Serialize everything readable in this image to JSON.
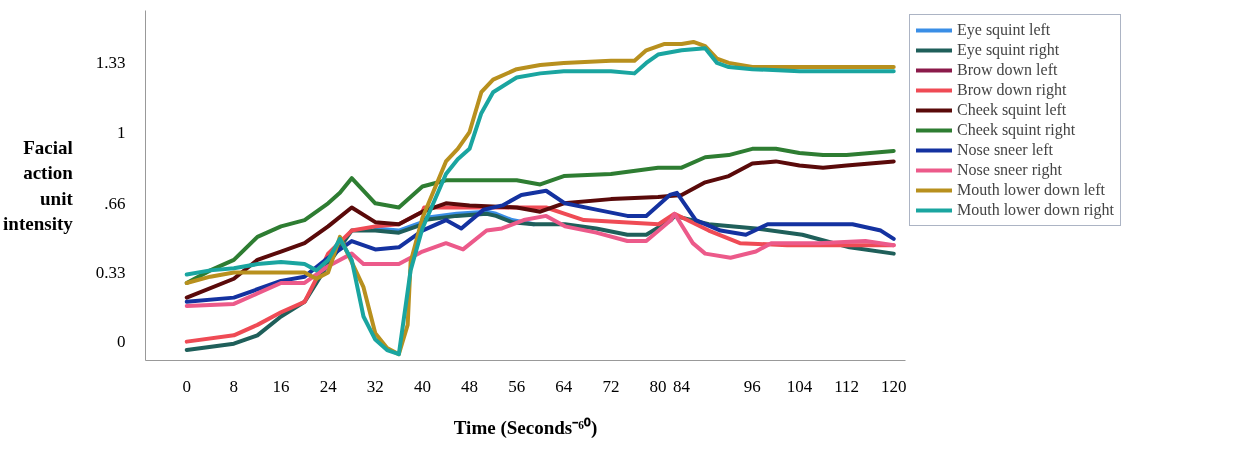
{
  "chart_data": {
    "type": "line",
    "xlabel": "Time (Seconds⁻⁶⁰)",
    "ylabel": "Facial action unit intensity",
    "xlim": [
      -7,
      122
    ],
    "ylim": [
      -0.09,
      1.58
    ],
    "xticks": [
      0,
      8,
      16,
      24,
      32,
      40,
      48,
      56,
      64,
      72,
      80,
      84,
      96,
      104,
      112,
      120
    ],
    "yticks": [
      0,
      0.33,
      {
        "value": 0.66,
        "label": ".66"
      },
      1,
      1.33
    ],
    "grid": false,
    "legend": "right",
    "marker": "none",
    "line_style": "solid",
    "series": [
      {
        "name": "Eye squint left",
        "color": "#3a8ee6",
        "x": [
          32,
          36,
          40,
          40.3,
          45.8,
          50.9,
          52.5,
          55.2,
          58.9
        ],
        "values": [
          0.54,
          0.53,
          0.57,
          0.59,
          0.61,
          0.62,
          0.61,
          0.58,
          0.56
        ]
      },
      {
        "name": "Eye squint right",
        "color": "#1f5f5a",
        "x": [
          0,
          8,
          12,
          16,
          20,
          24,
          28,
          32,
          36,
          40,
          40.3,
          45.8,
          50.9,
          52.5,
          55.2,
          58.9,
          64.2,
          69.5,
          74.8,
          78,
          82.2,
          82.8,
          88.6,
          96.6,
          104.5,
          112.5,
          120
        ],
        "values": [
          -0.04,
          -0.01,
          0.03,
          0.12,
          0.19,
          0.37,
          0.53,
          0.53,
          0.52,
          0.56,
          0.58,
          0.6,
          0.61,
          0.6,
          0.57,
          0.56,
          0.56,
          0.54,
          0.51,
          0.51,
          0.58,
          0.6,
          0.56,
          0.54,
          0.51,
          0.45,
          0.42
        ]
      },
      {
        "name": "Brow down left",
        "color": "#8b1a4a"
      },
      {
        "name": "Brow down right",
        "color": "#ef4b55",
        "x": [
          0,
          8,
          12,
          16,
          20,
          22,
          24,
          28,
          32,
          36,
          40,
          40.3,
          48.3,
          56.8,
          61,
          64.2,
          67.4,
          80.1,
          82.8,
          88.6,
          93.9,
          101.9,
          109.9,
          120
        ],
        "values": [
          0.0,
          0.03,
          0.08,
          0.14,
          0.19,
          0.3,
          0.42,
          0.53,
          0.55,
          0.56,
          0.62,
          0.64,
          0.64,
          0.64,
          0.64,
          0.61,
          0.58,
          0.56,
          0.61,
          0.53,
          0.47,
          0.46,
          0.46,
          0.46
        ]
      },
      {
        "name": "Cheek squint left",
        "color": "#5a0a0a",
        "x": [
          0,
          8,
          12,
          16,
          20,
          24,
          28,
          32,
          36,
          40,
          44,
          48,
          56,
          60,
          64,
          72,
          80,
          84,
          88,
          92,
          96,
          100,
          104,
          108,
          112,
          116,
          120
        ],
        "values": [
          0.21,
          0.3,
          0.39,
          0.43,
          0.47,
          0.55,
          0.64,
          0.57,
          0.56,
          0.62,
          0.66,
          0.65,
          0.64,
          0.62,
          0.66,
          0.68,
          0.69,
          0.7,
          0.76,
          0.79,
          0.85,
          0.86,
          0.84,
          0.83,
          0.84,
          0.85,
          0.86
        ]
      },
      {
        "name": "Cheek squint right",
        "color": "#2e7d32",
        "x": [
          0,
          4,
          8,
          12,
          16,
          20,
          24,
          26,
          28,
          32,
          36,
          40,
          44,
          48,
          56,
          60,
          64,
          72,
          80,
          84,
          88,
          92,
          96,
          100,
          104,
          108,
          112,
          116,
          120
        ],
        "values": [
          0.28,
          0.34,
          0.39,
          0.5,
          0.55,
          0.58,
          0.66,
          0.71,
          0.78,
          0.66,
          0.64,
          0.74,
          0.77,
          0.77,
          0.77,
          0.75,
          0.79,
          0.8,
          0.83,
          0.83,
          0.88,
          0.89,
          0.92,
          0.92,
          0.9,
          0.89,
          0.89,
          0.9,
          0.91
        ]
      },
      {
        "name": "Nose sneer left",
        "color": "#1432a0",
        "x": [
          0,
          8,
          12,
          16,
          20,
          24,
          28,
          32,
          36,
          40,
          44,
          46.6,
          50.4,
          53.6,
          56.8,
          61,
          64.2,
          69.5,
          74.8,
          78,
          82,
          83.2,
          86.4,
          90.6,
          94.9,
          98.6,
          103.4,
          113,
          117.8,
          120
        ],
        "values": [
          0.19,
          0.21,
          0.25,
          0.29,
          0.31,
          0.4,
          0.48,
          0.44,
          0.45,
          0.53,
          0.58,
          0.54,
          0.63,
          0.65,
          0.7,
          0.72,
          0.66,
          0.63,
          0.6,
          0.6,
          0.7,
          0.71,
          0.58,
          0.53,
          0.51,
          0.56,
          0.56,
          0.56,
          0.53,
          0.49
        ]
      },
      {
        "name": "Nose sneer right",
        "color": "#ec5a8a",
        "x": [
          0,
          8,
          12,
          16,
          20,
          24,
          28,
          30,
          32,
          36,
          40,
          44,
          46.9,
          50.9,
          53.5,
          57.2,
          61,
          64.2,
          69.5,
          74.8,
          78,
          82.2,
          82.8,
          85.9,
          88,
          92.3,
          96.6,
          99.2,
          107.2,
          115.2,
          120
        ],
        "values": [
          0.17,
          0.18,
          0.23,
          0.28,
          0.28,
          0.36,
          0.42,
          0.37,
          0.37,
          0.37,
          0.43,
          0.47,
          0.44,
          0.53,
          0.54,
          0.58,
          0.6,
          0.55,
          0.52,
          0.48,
          0.48,
          0.58,
          0.61,
          0.47,
          0.42,
          0.4,
          0.43,
          0.47,
          0.47,
          0.48,
          0.46
        ]
      },
      {
        "name": "Mouth lower down left",
        "color": "#b8901e",
        "x": [
          0,
          4,
          8,
          16,
          20,
          22,
          24,
          26,
          30,
          32,
          34,
          36,
          37.5,
          38,
          40,
          44,
          46,
          48,
          50,
          52,
          56,
          60,
          64,
          72,
          76,
          78,
          81,
          84,
          86,
          88,
          90,
          92,
          96,
          104,
          120
        ],
        "values": [
          0.28,
          0.31,
          0.33,
          0.33,
          0.33,
          0.3,
          0.33,
          0.5,
          0.26,
          0.04,
          -0.03,
          -0.06,
          0.08,
          0.38,
          0.59,
          0.86,
          0.92,
          1.0,
          1.19,
          1.25,
          1.3,
          1.32,
          1.33,
          1.34,
          1.34,
          1.39,
          1.42,
          1.42,
          1.43,
          1.41,
          1.35,
          1.33,
          1.31,
          1.31,
          1.31
        ]
      },
      {
        "name": "Mouth lower down right",
        "color": "#1aa5a0",
        "x": [
          0,
          4,
          8,
          12,
          16,
          20,
          22,
          24,
          26,
          28,
          30,
          32,
          34,
          36,
          38,
          40,
          44,
          46,
          48,
          50,
          52,
          56,
          60,
          64,
          72,
          76,
          78,
          80,
          84,
          88,
          90,
          92,
          96,
          104,
          120
        ],
        "values": [
          0.32,
          0.34,
          0.35,
          0.37,
          0.38,
          0.37,
          0.34,
          0.39,
          0.49,
          0.39,
          0.12,
          0.01,
          -0.04,
          -0.06,
          0.34,
          0.54,
          0.8,
          0.87,
          0.92,
          1.09,
          1.19,
          1.26,
          1.28,
          1.29,
          1.29,
          1.28,
          1.33,
          1.37,
          1.39,
          1.4,
          1.33,
          1.31,
          1.3,
          1.29,
          1.29
        ]
      }
    ]
  }
}
